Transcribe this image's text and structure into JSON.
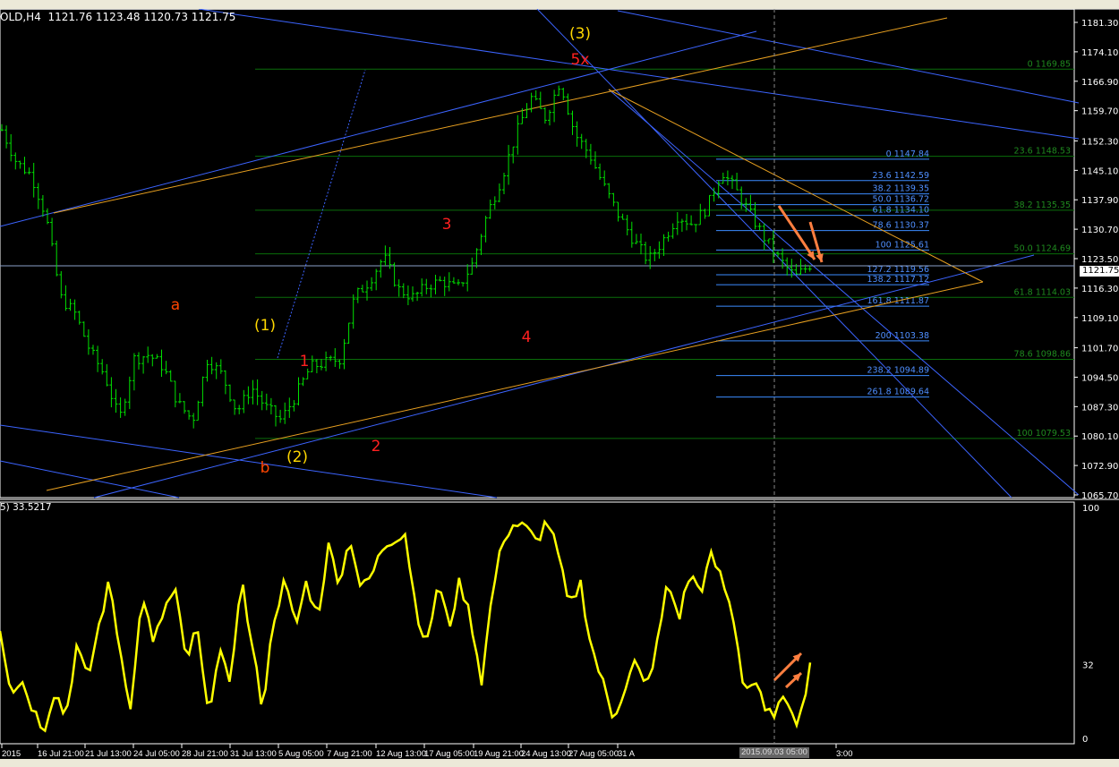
{
  "header": {
    "symbol_info": "OLD,H4  1121.76 1123.48 1120.73 1121.75"
  },
  "indicator_header": {
    "label": "5) 33.5217"
  },
  "price_axis": {
    "ticks": [
      "1181.30",
      "1174.10",
      "1166.90",
      "1159.70",
      "1152.30",
      "1145.10",
      "1137.90",
      "1130.70",
      "1123.50",
      "1116.30",
      "1109.10",
      "1101.70",
      "1094.50",
      "1087.30",
      "1080.10",
      "1072.90",
      "1065.70"
    ],
    "current_price": "1121.75",
    "range": [
      1065.7,
      1181.3
    ]
  },
  "indicator_axis": {
    "ticks": [
      "100",
      "32",
      "0"
    ],
    "range": [
      0,
      100
    ]
  },
  "time_axis": {
    "ticks": [
      "2015",
      "16 Jul 21:00",
      "21 Jul 13:00",
      "24 Jul 05:00",
      "28 Jul 21:00",
      "31 Jul 13:00",
      "5 Aug 05:00",
      "7 Aug 21:00",
      "12 Aug 13:00",
      "17 Aug 05:00",
      "19 Aug 21:00",
      "24 Aug 13:00",
      "27 Aug 05:00",
      "31 A",
      "3:00"
    ],
    "crosshair_time": "2015.09.03 05:00"
  },
  "fib_major": [
    {
      "label": "0 1169.85",
      "price": 1169.85
    },
    {
      "label": "23.6 1148.53",
      "price": 1148.53
    },
    {
      "label": "38.2 1135.35",
      "price": 1135.35
    },
    {
      "label": "50.0 1124.69",
      "price": 1124.69
    },
    {
      "label": "61.8 1114.03",
      "price": 1114.03
    },
    {
      "label": "78.6 1098.86",
      "price": 1098.86
    },
    {
      "label": "100 1079.53",
      "price": 1079.53
    }
  ],
  "fib_minor": [
    {
      "label": "0 1147.84",
      "price": 1147.84
    },
    {
      "label": "23.6 1142.59",
      "price": 1142.59
    },
    {
      "label": "38.2 1139.35",
      "price": 1139.35
    },
    {
      "label": "50.0 1136.72",
      "price": 1136.72
    },
    {
      "label": "61.8 1134.10",
      "price": 1134.1
    },
    {
      "label": "78.6 1130.37",
      "price": 1130.37
    },
    {
      "label": "100 1125.61",
      "price": 1125.61
    },
    {
      "label": "127.2 1119.56",
      "price": 1119.56
    },
    {
      "label": "138.2 1117.12",
      "price": 1117.12
    },
    {
      "label": "161.8 1111.87",
      "price": 1111.87
    },
    {
      "label": "200 1103.38",
      "price": 1103.38
    },
    {
      "label": "238.2 1094.89",
      "price": 1094.89
    },
    {
      "label": "261.8 1089.64",
      "price": 1089.64
    }
  ],
  "wave_labels": [
    {
      "text": "(3)",
      "color": "#ffd700"
    },
    {
      "text": "5x",
      "color": "#ff2020"
    },
    {
      "text": "3",
      "color": "#ff2020"
    },
    {
      "text": "4",
      "color": "#ff2020"
    },
    {
      "text": "(1)",
      "color": "#ffd700"
    },
    {
      "text": "1",
      "color": "#ff2020"
    },
    {
      "text": "2",
      "color": "#ff2020"
    },
    {
      "text": "(2)",
      "color": "#ffd700"
    },
    {
      "text": "a",
      "color": "#ff4500"
    },
    {
      "text": "b",
      "color": "#ff4500"
    }
  ],
  "colors": {
    "bars": "#00e000",
    "indicator": "#ffff00",
    "fib_major": "#0a6e0a",
    "fib_minor": "#3c8cff",
    "trend_blue": "#3c64ff",
    "trend_orange": "#e8a020",
    "arrows": "#ff7f40"
  },
  "chart_data": {
    "type": "ohlc",
    "price_keypoints": [
      1155,
      1147,
      1144,
      1134,
      1114,
      1110,
      1101,
      1095,
      1084,
      1099,
      1100,
      1097,
      1088,
      1084,
      1099,
      1095,
      1086,
      1092,
      1087,
      1084,
      1090,
      1097,
      1098,
      1099,
      1114,
      1118,
      1124,
      1116,
      1114,
      1117,
      1118,
      1116,
      1122,
      1134,
      1143,
      1154,
      1163,
      1158,
      1167,
      1154,
      1149,
      1141,
      1134,
      1128,
      1123,
      1128,
      1134,
      1132,
      1136,
      1145,
      1140,
      1134,
      1128,
      1123,
      1119,
      1122
    ],
    "indicator_keypoints": [
      48,
      21,
      25,
      13,
      4,
      21,
      9,
      40,
      25,
      48,
      68,
      37,
      13,
      64,
      40,
      56,
      64,
      33,
      48,
      9,
      40,
      21,
      71,
      40,
      13,
      52,
      68,
      48,
      68,
      52,
      83,
      68,
      87,
      64,
      71,
      83,
      87,
      89,
      56,
      40,
      68,
      48,
      68,
      52,
      25,
      64,
      87,
      93,
      91,
      85,
      95,
      79,
      56,
      68,
      40,
      25,
      9,
      21,
      33,
      21,
      40,
      68,
      52,
      71,
      64,
      79,
      68,
      52,
      21,
      25,
      9,
      13,
      17,
      6,
      33
    ]
  }
}
